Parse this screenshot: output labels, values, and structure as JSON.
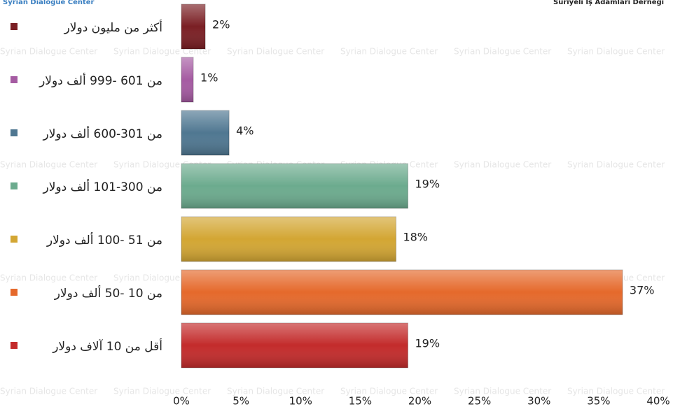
{
  "header": {
    "left": "Syrian Dialogue Center",
    "right": "Suriyeli İş Adamları Derneği"
  },
  "watermark": "Syrian Dialogue Center",
  "chart_data": {
    "type": "bar",
    "orientation": "horizontal",
    "categories": [
      "أكثر من مليون دولار",
      "من 601 -999 ألف دولار",
      "من 301-600 ألف دولار",
      "من  300-101 ألف دولار",
      "من 51 -100 ألف دولار",
      "من 10 -50 ألف دولار",
      "أقل من 10 آلاف دولار"
    ],
    "values": [
      2,
      1,
      4,
      19,
      18,
      37,
      19
    ],
    "value_labels": [
      "2%",
      "1%",
      "4%",
      "19%",
      "18%",
      "37%",
      "19%"
    ],
    "colors": [
      "#7a1f24",
      "#a55ba2",
      "#4f7791",
      "#6cab8e",
      "#d3a633",
      "#e5692b",
      "#c32b2b"
    ],
    "xlim": [
      0,
      40
    ],
    "xticks": [
      {
        "value": 0,
        "label": "0%"
      },
      {
        "value": 5,
        "label": "5%"
      },
      {
        "value": 10,
        "label": "10%"
      },
      {
        "value": 15,
        "label": "15%"
      },
      {
        "value": 20,
        "label": "20%"
      },
      {
        "value": 25,
        "label": "25%"
      },
      {
        "value": 30,
        "label": "30%"
      },
      {
        "value": 35,
        "label": "35%"
      },
      {
        "value": 40,
        "label": "40%"
      }
    ]
  }
}
